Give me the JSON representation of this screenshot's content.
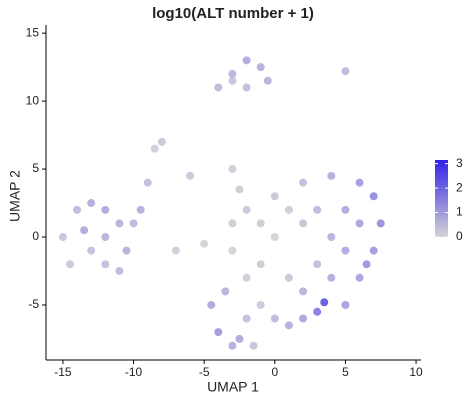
{
  "chart_data": {
    "type": "scatter",
    "title": "log10(ALT number + 1)",
    "x_label": "UMAP 1",
    "y_label": "UMAP 2",
    "x": [
      0,
      2,
      4,
      6,
      7,
      7.5,
      7,
      6,
      5,
      3,
      2,
      1,
      0,
      -1,
      -2,
      -3,
      -3,
      -2,
      -1,
      0,
      1,
      2,
      3,
      4,
      5,
      6,
      3,
      1,
      4,
      -1,
      2,
      5,
      6.5,
      3.5,
      -4.5,
      -4,
      -3,
      -2,
      -3.5,
      -2.5,
      -1.5,
      -15,
      -14,
      -13,
      -12,
      -11,
      -10.5,
      -11,
      -12,
      -13,
      -14.5,
      -13.5,
      -12,
      -10,
      -9.5,
      -4,
      -3,
      -2,
      -1,
      -0.5,
      -2,
      -3,
      5,
      -8,
      -8.5,
      -6,
      -3,
      -2.5,
      -5,
      -7,
      -9
    ],
    "values": [
      3,
      4,
      4.5,
      4,
      3,
      1,
      -1,
      -3,
      -5,
      -5.5,
      -6,
      -6.5,
      -6,
      -5,
      -3,
      -1,
      1,
      2,
      1,
      0,
      2,
      1,
      2,
      0,
      2,
      1,
      -2,
      -3,
      -3,
      -2,
      -4,
      -1,
      -2,
      -4.8,
      -5,
      -7,
      -8,
      -6,
      -4,
      -7.5,
      -8,
      0,
      2,
      2.5,
      2,
      1,
      -1,
      -2.5,
      -2,
      -1,
      -2,
      0.5,
      0,
      1,
      2,
      11,
      12,
      13,
      12.5,
      11.5,
      11,
      11.5,
      12.2,
      7,
      6.5,
      4.5,
      5,
      3.5,
      -0.5,
      -1,
      4
    ],
    "color_values": [
      0.3,
      0.5,
      0.8,
      1.2,
      1.5,
      1.4,
      1.2,
      1.0,
      1.1,
      1.8,
      1.0,
      0.8,
      0.6,
      0.3,
      0.2,
      0.1,
      0.2,
      0.3,
      0.2,
      0.1,
      0.2,
      0.4,
      0.6,
      0.7,
      0.9,
      1.0,
      0.5,
      0.3,
      0.8,
      0.2,
      0.7,
      0.9,
      1.3,
      2.5,
      0.9,
      1.2,
      0.8,
      0.5,
      0.7,
      0.9,
      0.4,
      0.4,
      0.6,
      0.8,
      0.9,
      0.7,
      0.8,
      0.6,
      0.5,
      0.5,
      0.3,
      0.9,
      0.7,
      0.6,
      0.8,
      0.6,
      0.7,
      0.9,
      0.8,
      0.7,
      0.5,
      0.4,
      0.6,
      0.3,
      0.2,
      0.3,
      0.2,
      0.2,
      0.1,
      0.2,
      0.5
    ],
    "color_low": "#d3d3d3",
    "color_high": "#3322e6",
    "xlim": [
      -16.2,
      10.35
    ],
    "ylim": [
      -9.05,
      15.6
    ],
    "xticks": [
      -15,
      -10,
      -5,
      0,
      5,
      10
    ],
    "yticks": [
      -5,
      0,
      5,
      10,
      15
    ],
    "colorbar_lim": [
      0,
      3.15
    ],
    "colorbar_ticks": [
      0,
      1,
      2,
      3
    ],
    "grid": false
  }
}
